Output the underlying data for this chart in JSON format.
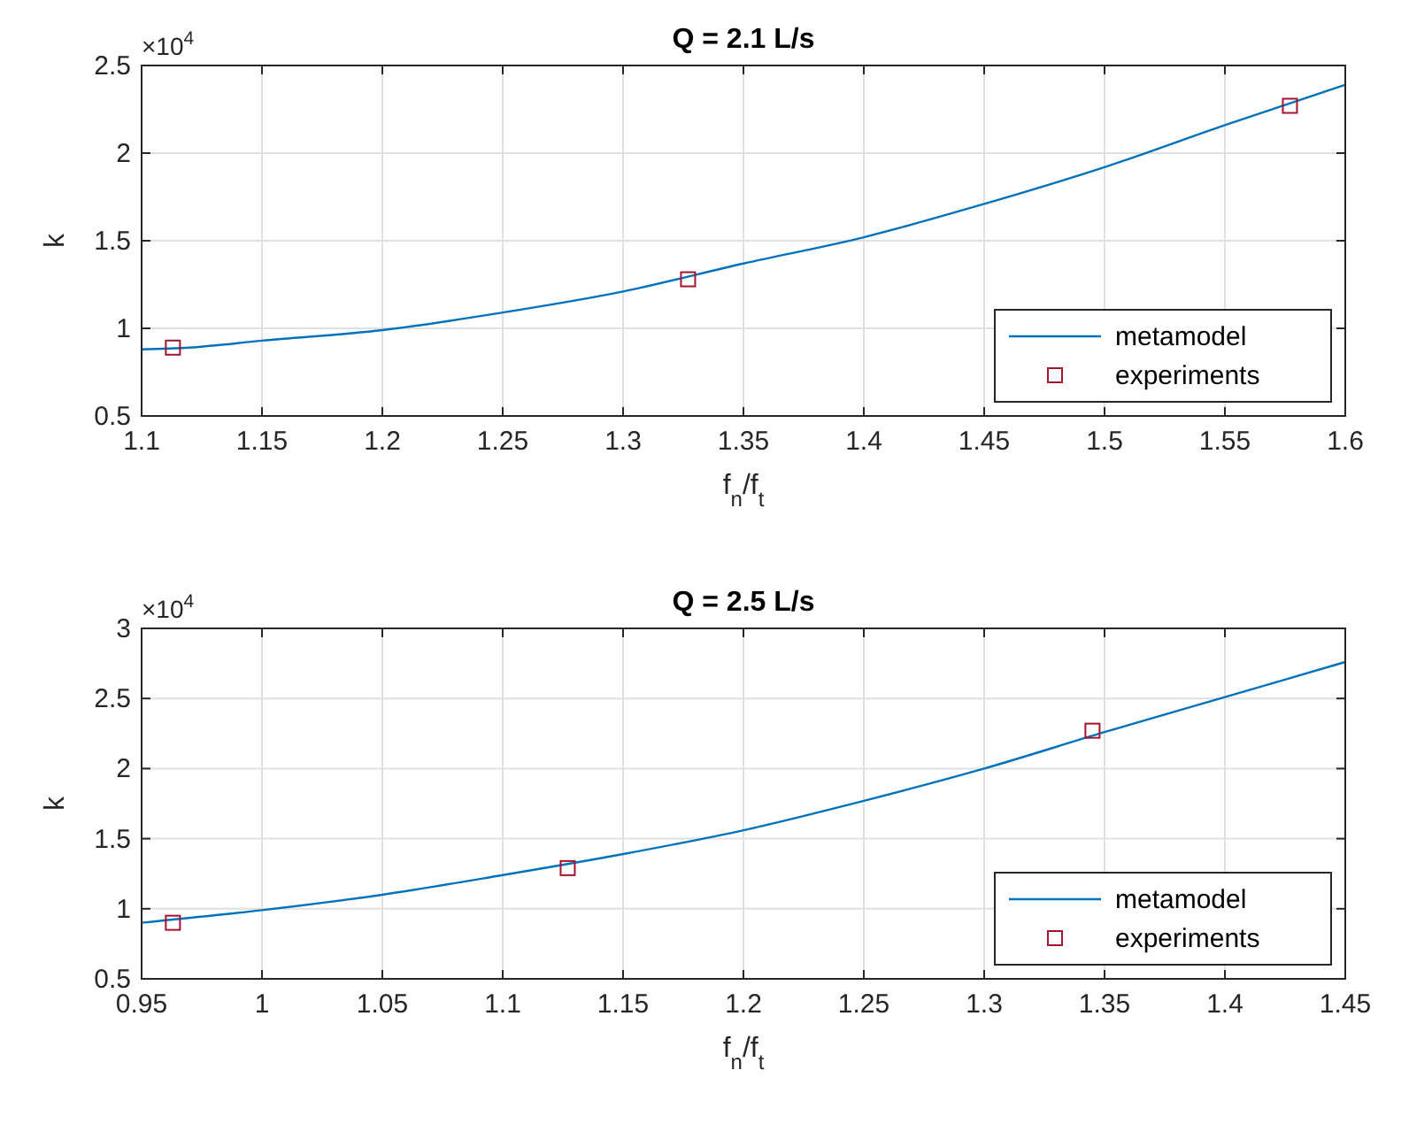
{
  "chart_data": [
    {
      "type": "line",
      "title": "Q = 2.1 L/s",
      "xlabel": "f$_{n}$/f$_{t}$",
      "ylabel": "k",
      "annotations": [
        "×10$^{4}$"
      ],
      "xlim": [
        1.1,
        1.6
      ],
      "xticks": [
        1.1,
        1.15,
        1.2,
        1.25,
        1.3,
        1.35,
        1.4,
        1.45,
        1.5,
        1.55,
        1.6
      ],
      "ylim": [
        0.5,
        2.5
      ],
      "yticks": [
        0.5,
        1,
        1.5,
        2,
        2.5
      ],
      "grid": true,
      "legend": "bottom right",
      "series": [
        {
          "name": "metamodel",
          "color": "#0072bd",
          "line_style": "solid",
          "marker": "none",
          "x": [
            1.1,
            1.12,
            1.15,
            1.2,
            1.25,
            1.3,
            1.35,
            1.4,
            1.45,
            1.5,
            1.55,
            1.6
          ],
          "values": [
            0.88,
            0.89,
            0.93,
            0.99,
            1.09,
            1.21,
            1.37,
            1.52,
            1.71,
            1.92,
            2.16,
            2.39
          ]
        },
        {
          "name": "experiments",
          "type": "scatter",
          "color": "#a2142f",
          "marker": "square",
          "x": [
            1.113,
            1.327,
            1.577
          ],
          "values": [
            0.89,
            1.28,
            2.27
          ]
        }
      ]
    },
    {
      "type": "line",
      "title": "Q = 2.5 L/s",
      "xlabel": "f$_{n}$/f$_{t}$",
      "ylabel": "k",
      "annotations": [
        "×10$^{4}$"
      ],
      "xlim": [
        0.95,
        1.45
      ],
      "xticks": [
        0.95,
        1,
        1.05,
        1.1,
        1.15,
        1.2,
        1.25,
        1.3,
        1.35,
        1.4,
        1.45
      ],
      "ylim": [
        0.5,
        3
      ],
      "yticks": [
        0.5,
        1,
        1.5,
        2,
        2.5,
        3
      ],
      "grid": true,
      "legend": "bottom right",
      "series": [
        {
          "name": "metamodel",
          "color": "#0072bd",
          "line_style": "solid",
          "marker": "none",
          "x": [
            0.95,
            1,
            1.05,
            1.1,
            1.15,
            1.2,
            1.25,
            1.3,
            1.35,
            1.4,
            1.45
          ],
          "values": [
            0.9,
            0.99,
            1.1,
            1.24,
            1.39,
            1.56,
            1.77,
            2.0,
            2.26,
            2.51,
            2.76
          ]
        },
        {
          "name": "experiments",
          "type": "scatter",
          "color": "#a2142f",
          "marker": "square",
          "x": [
            0.963,
            1.127,
            1.345
          ],
          "values": [
            0.9,
            1.29,
            2.27
          ]
        }
      ]
    }
  ]
}
